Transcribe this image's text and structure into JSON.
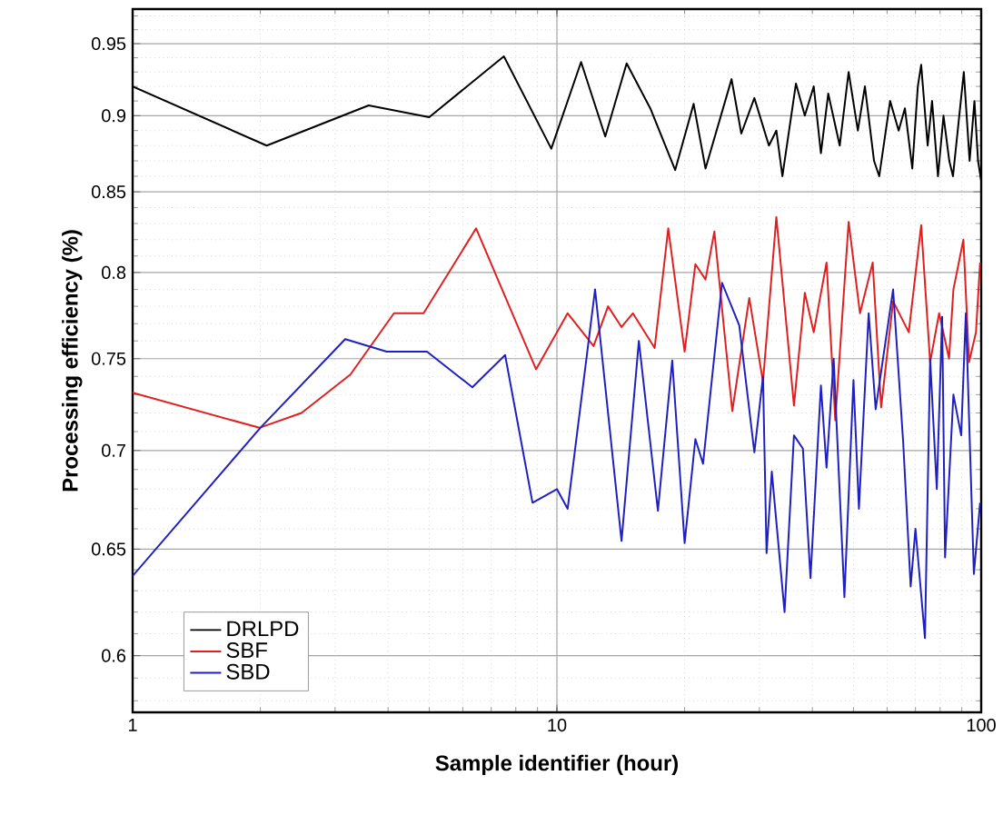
{
  "chart_data": {
    "type": "line",
    "xlabel": "Sample identifier (hour)",
    "ylabel": "Processing efficiency (%)",
    "log": "xy",
    "grid": true,
    "legend": "bottom left",
    "xlim": [
      1,
      100
    ],
    "ylim": [
      0.575,
      0.975
    ],
    "xticks": [
      1,
      10,
      100
    ],
    "yticks": [
      0.6,
      0.65,
      0.7,
      0.75,
      0.8,
      0.85,
      0.9,
      0.95
    ],
    "series": [
      {
        "name": "DRLPD",
        "color": "#000000",
        "x": [
          1,
          2.07,
          3.6,
          5.0,
          7.5,
          9.7,
          11.4,
          13.0,
          14.6,
          16.6,
          19.0,
          21.0,
          22.4,
          25.8,
          27.2,
          29.2,
          31.6,
          32.9,
          34.0,
          36.6,
          38.4,
          40.3,
          41.9,
          43.6,
          46.4,
          48.7,
          51.2,
          53.2,
          55.9,
          57.5,
          61.0,
          63.9,
          66.1,
          68.8,
          70.9,
          72.2,
          74.8,
          76.6,
          79.1,
          81.5,
          84.1,
          85.8,
          91.0,
          93.9,
          96.4,
          98.3,
          100
        ],
        "values": [
          0.92,
          0.88,
          0.907,
          0.899,
          0.941,
          0.878,
          0.937,
          0.886,
          0.936,
          0.905,
          0.864,
          0.908,
          0.865,
          0.925,
          0.888,
          0.912,
          0.88,
          0.89,
          0.86,
          0.922,
          0.9,
          0.92,
          0.875,
          0.915,
          0.88,
          0.93,
          0.89,
          0.92,
          0.87,
          0.86,
          0.91,
          0.89,
          0.905,
          0.865,
          0.92,
          0.935,
          0.88,
          0.91,
          0.86,
          0.9,
          0.87,
          0.86,
          0.93,
          0.87,
          0.91,
          0.87,
          0.857
        ]
      },
      {
        "name": "SBF",
        "color": "#e02020",
        "x": [
          1,
          1.99,
          2.5,
          3.26,
          4.13,
          4.85,
          6.45,
          8.93,
          10.6,
          12.2,
          13.2,
          14.2,
          15.1,
          17.0,
          18.3,
          20.0,
          21.2,
          22.4,
          23.5,
          25.9,
          28.4,
          30.6,
          32.9,
          36.2,
          38.4,
          40.3,
          43.2,
          45.3,
          48.7,
          51.8,
          55.5,
          58.1,
          62.0,
          67.5,
          72.2,
          75.8,
          79.6,
          84.0,
          86.0,
          90.8,
          93.6,
          97.2,
          99.4
        ],
        "values": [
          0.731,
          0.712,
          0.72,
          0.741,
          0.776,
          0.776,
          0.827,
          0.744,
          0.776,
          0.757,
          0.78,
          0.768,
          0.776,
          0.756,
          0.827,
          0.754,
          0.805,
          0.796,
          0.825,
          0.721,
          0.785,
          0.737,
          0.834,
          0.724,
          0.788,
          0.765,
          0.806,
          0.716,
          0.831,
          0.776,
          0.806,
          0.723,
          0.783,
          0.765,
          0.829,
          0.748,
          0.776,
          0.75,
          0.79,
          0.82,
          0.748,
          0.765,
          0.806
        ]
      },
      {
        "name": "SBD",
        "color": "#2020c0",
        "x": [
          1,
          2.0,
          3.17,
          3.97,
          4.94,
          6.32,
          7.55,
          8.76,
          10.0,
          10.6,
          12.3,
          14.2,
          15.6,
          17.3,
          18.7,
          20.0,
          21.2,
          22.1,
          24.5,
          26.9,
          29.2,
          30.6,
          31.2,
          32.1,
          34.4,
          36.2,
          38.0,
          39.6,
          41.9,
          43.2,
          44.9,
          47.6,
          50.0,
          51.5,
          54.3,
          56.4,
          62.0,
          65.5,
          68.2,
          70.0,
          73.7,
          75.8,
          78.6,
          80.9,
          82.2,
          86.0,
          89.7,
          92.0,
          96.1,
          99.4
        ],
        "values": [
          0.637,
          0.712,
          0.761,
          0.754,
          0.754,
          0.734,
          0.752,
          0.673,
          0.68,
          0.67,
          0.79,
          0.654,
          0.76,
          0.669,
          0.749,
          0.653,
          0.706,
          0.693,
          0.794,
          0.769,
          0.699,
          0.74,
          0.648,
          0.689,
          0.62,
          0.708,
          0.701,
          0.636,
          0.735,
          0.691,
          0.75,
          0.627,
          0.738,
          0.67,
          0.776,
          0.722,
          0.79,
          0.704,
          0.632,
          0.66,
          0.608,
          0.75,
          0.68,
          0.774,
          0.646,
          0.73,
          0.708,
          0.776,
          0.638,
          0.673
        ]
      }
    ]
  }
}
